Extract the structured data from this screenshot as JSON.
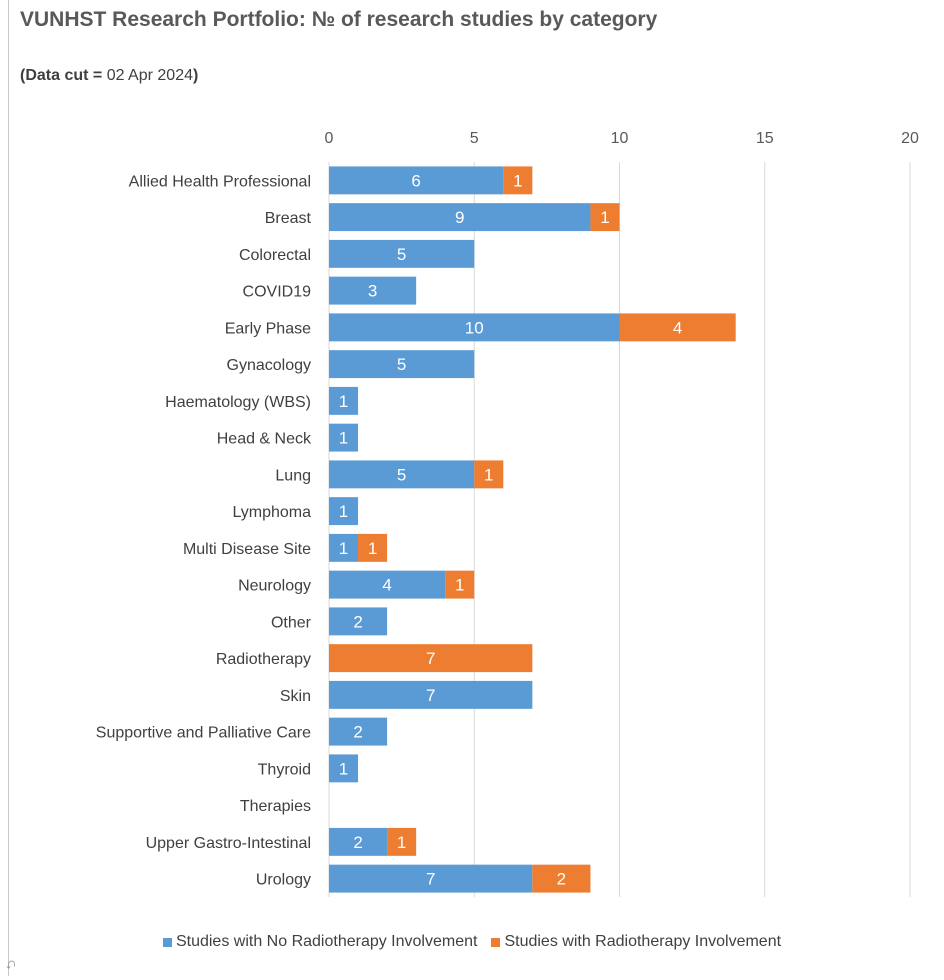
{
  "title": "VUNHST Research Portfolio: № of research studies by category",
  "subtitle": {
    "prefix": "(Data cut = ",
    "date": "02 Apr 2024",
    "suffix": ")"
  },
  "colors": {
    "no_rt": "#5b9bd5",
    "rt": "#ed7d31",
    "grid": "#d9d9d9"
  },
  "chart_data": {
    "type": "bar",
    "orientation": "horizontal",
    "stacked": true,
    "xlim": [
      0,
      20
    ],
    "xticks": [
      "0",
      "5",
      "10",
      "15",
      "20"
    ],
    "x_axis_position": "top",
    "grid": true,
    "legend_position": "bottom",
    "categories": [
      "Allied Health Professional",
      "Breast",
      "Colorectal",
      "COVID19",
      "Early Phase ",
      "Gynacology",
      "Haematology (WBS)",
      "Head & Neck",
      "Lung",
      "Lymphoma",
      "Multi Disease Site",
      "Neurology",
      "Other",
      "Radiotherapy",
      "Skin",
      "Supportive and Palliative Care",
      "Thyroid",
      "Therapies",
      "Upper Gastro-Intestinal",
      "Urology"
    ],
    "series": [
      {
        "name": "Studies with No Radiotherapy Involvement",
        "values": [
          6,
          9,
          5,
          3,
          10,
          5,
          1,
          1,
          5,
          1,
          1,
          4,
          2,
          0,
          7,
          2,
          1,
          0,
          2,
          7
        ]
      },
      {
        "name": "Studies with Radiotherapy Involvement",
        "values": [
          1,
          1,
          0,
          0,
          4,
          0,
          0,
          0,
          1,
          0,
          1,
          1,
          0,
          7,
          0,
          0,
          0,
          0,
          1,
          2
        ]
      }
    ]
  }
}
